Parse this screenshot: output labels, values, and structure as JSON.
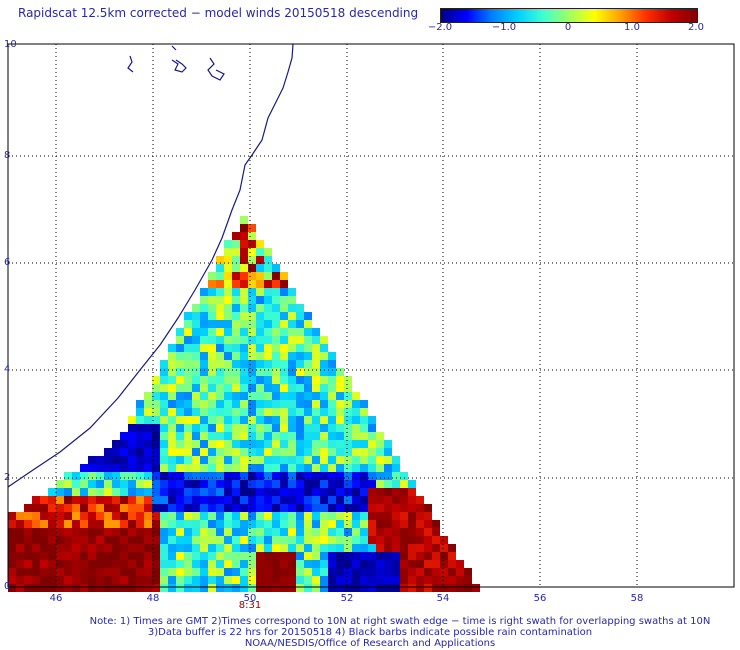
{
  "title": "Rapidscat 12.5km corrected − model winds 20150518 descending",
  "colorbar": {
    "colors": [
      "#00008b",
      "#0000ff",
      "#0080ff",
      "#00d0ff",
      "#40ffd0",
      "#a0ff60",
      "#ffff00",
      "#ffa000",
      "#ff3000",
      "#c00000",
      "#800000"
    ],
    "ticks": [
      {
        "label": "−2.0",
        "value": -2.0
      },
      {
        "label": "−1.0",
        "value": -1.0
      },
      {
        "label": "0",
        "value": 0
      },
      {
        "label": "1.0",
        "value": 1.0
      },
      {
        "label": "2.0",
        "value": 2.0
      }
    ]
  },
  "axes": {
    "xticks": [
      "46",
      "48",
      "50",
      "52",
      "54",
      "56",
      "58"
    ],
    "yticks": [
      "0",
      "2",
      "4",
      "6",
      "8",
      "10"
    ],
    "xrange": [
      45,
      60
    ],
    "yrange": [
      0,
      10
    ]
  },
  "time_label": {
    "text": "8:31",
    "color": "#a00000"
  },
  "coast_color": "#1a1a80",
  "notes": {
    "line1": "Note: 1) Times are GMT 2)Times correspond to 10N at right swath edge − time is right swath for overlapping swaths at 10N",
    "line2": "3)Data buffer is 22 hrs for 20150518 4) Black barbs indicate possible rain contamination",
    "line3": "NOAA/NESDIS/Office of Research and Applications"
  }
}
